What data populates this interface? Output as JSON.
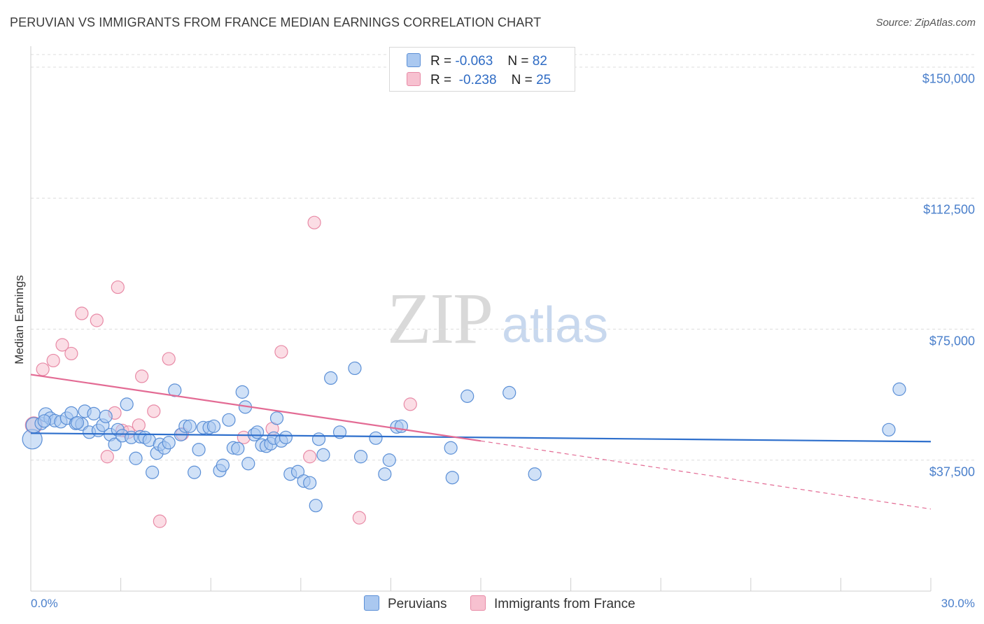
{
  "header": {
    "title": "PERUVIAN VS IMMIGRANTS FROM FRANCE MEDIAN EARNINGS CORRELATION CHART",
    "source": "Source: ZipAtlas.com"
  },
  "watermark": {
    "zip": "ZIP",
    "atlas": "atlas"
  },
  "stats": {
    "peruvians": {
      "r_label": "R =",
      "r_value": "-0.063",
      "n_label": "N =",
      "n_value": "82"
    },
    "france": {
      "r_label": "R =",
      "r_value": "-0.238",
      "n_label": "N =",
      "n_value": "25"
    }
  },
  "colors": {
    "peruvians_fill": "#aac8f0",
    "peruvians_stroke": "#5b8fd6",
    "peruvians_line": "#2e6fcc",
    "france_fill": "#f7c1d0",
    "france_stroke": "#e88aa6",
    "france_line": "#e36b94",
    "axis_label": "#4a7fcb",
    "grid": "#dcdcdc"
  },
  "chart_data": {
    "type": "scatter",
    "title": "PERUVIAN VS IMMIGRANTS FROM FRANCE MEDIAN EARNINGS CORRELATION CHART",
    "xlabel": "",
    "ylabel": "Median Earnings",
    "xlim": [
      0,
      30
    ],
    "ylim": [
      0,
      150000
    ],
    "x_tick_labels": [
      "0.0%",
      "30.0%"
    ],
    "y_ticks": [
      37500,
      75000,
      112500,
      150000
    ],
    "y_tick_labels": [
      "$37,500",
      "$75,000",
      "$112,500",
      "$150,000"
    ],
    "grid": true,
    "legend_position": "bottom",
    "series": [
      {
        "name": "Peruvians",
        "r": -0.063,
        "n": 82,
        "trend": {
          "x0": 0,
          "y0": 45200,
          "x1": 30,
          "y1": 42800
        },
        "points": [
          {
            "x": 0.05,
            "y": 43500,
            "s": 14
          },
          {
            "x": 0.1,
            "y": 47500,
            "s": 11
          },
          {
            "x": 0.35,
            "y": 48000,
            "s": 9
          },
          {
            "x": 0.5,
            "y": 50500,
            "s": 10
          },
          {
            "x": 0.65,
            "y": 49500,
            "s": 9
          },
          {
            "x": 0.8,
            "y": 48800,
            "s": 9
          },
          {
            "x": 1.0,
            "y": 48500,
            "s": 9
          },
          {
            "x": 1.2,
            "y": 49500,
            "s": 9
          },
          {
            "x": 1.35,
            "y": 51000,
            "s": 9
          },
          {
            "x": 1.5,
            "y": 48000,
            "s": 9
          },
          {
            "x": 1.7,
            "y": 47800,
            "s": 9
          },
          {
            "x": 1.8,
            "y": 51500,
            "s": 9
          },
          {
            "x": 1.95,
            "y": 45500,
            "s": 9
          },
          {
            "x": 2.1,
            "y": 50800,
            "s": 9
          },
          {
            "x": 2.25,
            "y": 46000,
            "s": 9
          },
          {
            "x": 2.4,
            "y": 47500,
            "s": 9
          },
          {
            "x": 2.5,
            "y": 50000,
            "s": 9
          },
          {
            "x": 2.65,
            "y": 44800,
            "s": 9
          },
          {
            "x": 2.8,
            "y": 42000,
            "s": 9
          },
          {
            "x": 2.9,
            "y": 46200,
            "s": 9
          },
          {
            "x": 3.05,
            "y": 44500,
            "s": 9
          },
          {
            "x": 3.2,
            "y": 53500,
            "s": 9
          },
          {
            "x": 3.35,
            "y": 44000,
            "s": 9
          },
          {
            "x": 3.5,
            "y": 38000,
            "s": 9
          },
          {
            "x": 3.65,
            "y": 44200,
            "s": 9
          },
          {
            "x": 3.8,
            "y": 44000,
            "s": 9
          },
          {
            "x": 3.95,
            "y": 43200,
            "s": 9
          },
          {
            "x": 4.05,
            "y": 34000,
            "s": 9
          },
          {
            "x": 4.2,
            "y": 39500,
            "s": 9
          },
          {
            "x": 4.3,
            "y": 42000,
            "s": 9
          },
          {
            "x": 4.45,
            "y": 41000,
            "s": 9
          },
          {
            "x": 4.6,
            "y": 42500,
            "s": 9
          },
          {
            "x": 4.8,
            "y": 57500,
            "s": 9
          },
          {
            "x": 5.0,
            "y": 44800,
            "s": 9
          },
          {
            "x": 5.15,
            "y": 47200,
            "s": 9
          },
          {
            "x": 5.3,
            "y": 47200,
            "s": 9
          },
          {
            "x": 5.45,
            "y": 34000,
            "s": 9
          },
          {
            "x": 5.6,
            "y": 40500,
            "s": 9
          },
          {
            "x": 5.75,
            "y": 46800,
            "s": 9
          },
          {
            "x": 5.95,
            "y": 46800,
            "s": 9
          },
          {
            "x": 6.1,
            "y": 47200,
            "s": 9
          },
          {
            "x": 6.3,
            "y": 34500,
            "s": 9
          },
          {
            "x": 6.4,
            "y": 36000,
            "s": 9
          },
          {
            "x": 6.6,
            "y": 49000,
            "s": 9
          },
          {
            "x": 6.75,
            "y": 41000,
            "s": 9
          },
          {
            "x": 6.9,
            "y": 40800,
            "s": 9
          },
          {
            "x": 7.05,
            "y": 57000,
            "s": 9
          },
          {
            "x": 7.15,
            "y": 52700,
            "s": 9
          },
          {
            "x": 7.25,
            "y": 36500,
            "s": 9
          },
          {
            "x": 7.45,
            "y": 44800,
            "s": 9
          },
          {
            "x": 7.55,
            "y": 45500,
            "s": 9
          },
          {
            "x": 7.7,
            "y": 41800,
            "s": 9
          },
          {
            "x": 7.85,
            "y": 41500,
            "s": 9
          },
          {
            "x": 8.0,
            "y": 42200,
            "s": 9
          },
          {
            "x": 8.1,
            "y": 43800,
            "s": 9
          },
          {
            "x": 8.2,
            "y": 49500,
            "s": 9
          },
          {
            "x": 8.35,
            "y": 43000,
            "s": 9
          },
          {
            "x": 8.5,
            "y": 44000,
            "s": 9
          },
          {
            "x": 8.65,
            "y": 33500,
            "s": 9
          },
          {
            "x": 8.9,
            "y": 34200,
            "s": 9
          },
          {
            "x": 9.1,
            "y": 31500,
            "s": 9
          },
          {
            "x": 9.3,
            "y": 31000,
            "s": 9
          },
          {
            "x": 9.5,
            "y": 24500,
            "s": 9
          },
          {
            "x": 9.6,
            "y": 43500,
            "s": 9
          },
          {
            "x": 9.75,
            "y": 39000,
            "s": 9
          },
          {
            "x": 10.0,
            "y": 61000,
            "s": 9
          },
          {
            "x": 10.3,
            "y": 45500,
            "s": 9
          },
          {
            "x": 10.8,
            "y": 63800,
            "s": 9
          },
          {
            "x": 11.0,
            "y": 38500,
            "s": 9
          },
          {
            "x": 11.5,
            "y": 43800,
            "s": 9
          },
          {
            "x": 11.8,
            "y": 33500,
            "s": 9
          },
          {
            "x": 11.95,
            "y": 37500,
            "s": 9
          },
          {
            "x": 12.2,
            "y": 47000,
            "s": 9
          },
          {
            "x": 12.35,
            "y": 47200,
            "s": 9
          },
          {
            "x": 14.0,
            "y": 41000,
            "s": 9
          },
          {
            "x": 14.05,
            "y": 32500,
            "s": 9
          },
          {
            "x": 14.55,
            "y": 55800,
            "s": 9
          },
          {
            "x": 15.95,
            "y": 56800,
            "s": 9
          },
          {
            "x": 16.8,
            "y": 33500,
            "s": 9
          },
          {
            "x": 28.6,
            "y": 46200,
            "s": 9
          },
          {
            "x": 28.95,
            "y": 57800,
            "s": 9
          },
          {
            "x": 1.55,
            "y": 48200,
            "s": 9
          },
          {
            "x": 0.45,
            "y": 48700,
            "s": 9
          }
        ]
      },
      {
        "name": "Immigrants from France",
        "r": -0.238,
        "n": 25,
        "trend": {
          "x0": 0,
          "y0": 62000,
          "x1": 15,
          "y1": 43000,
          "dashed_to": {
            "x": 30,
            "y": 23500
          }
        },
        "points": [
          {
            "x": 0.1,
            "y": 47500,
            "s": 12
          },
          {
            "x": 0.4,
            "y": 63500,
            "s": 9
          },
          {
            "x": 0.75,
            "y": 66000,
            "s": 9
          },
          {
            "x": 1.05,
            "y": 70500,
            "s": 9
          },
          {
            "x": 1.35,
            "y": 68000,
            "s": 9
          },
          {
            "x": 1.7,
            "y": 79500,
            "s": 9
          },
          {
            "x": 2.2,
            "y": 77500,
            "s": 9
          },
          {
            "x": 2.55,
            "y": 38500,
            "s": 9
          },
          {
            "x": 2.8,
            "y": 51000,
            "s": 9
          },
          {
            "x": 2.9,
            "y": 87000,
            "s": 9
          },
          {
            "x": 3.05,
            "y": 46000,
            "s": 9
          },
          {
            "x": 3.25,
            "y": 45500,
            "s": 9
          },
          {
            "x": 3.6,
            "y": 47500,
            "s": 9
          },
          {
            "x": 3.7,
            "y": 61500,
            "s": 9
          },
          {
            "x": 4.1,
            "y": 51500,
            "s": 9
          },
          {
            "x": 4.3,
            "y": 20000,
            "s": 9
          },
          {
            "x": 4.6,
            "y": 66500,
            "s": 9
          },
          {
            "x": 5.05,
            "y": 45000,
            "s": 9
          },
          {
            "x": 7.1,
            "y": 44000,
            "s": 9
          },
          {
            "x": 8.05,
            "y": 46500,
            "s": 9
          },
          {
            "x": 8.35,
            "y": 68500,
            "s": 9
          },
          {
            "x": 9.3,
            "y": 38500,
            "s": 9
          },
          {
            "x": 9.45,
            "y": 105500,
            "s": 9
          },
          {
            "x": 10.95,
            "y": 21000,
            "s": 9
          },
          {
            "x": 12.65,
            "y": 53500,
            "s": 9
          }
        ]
      }
    ]
  }
}
